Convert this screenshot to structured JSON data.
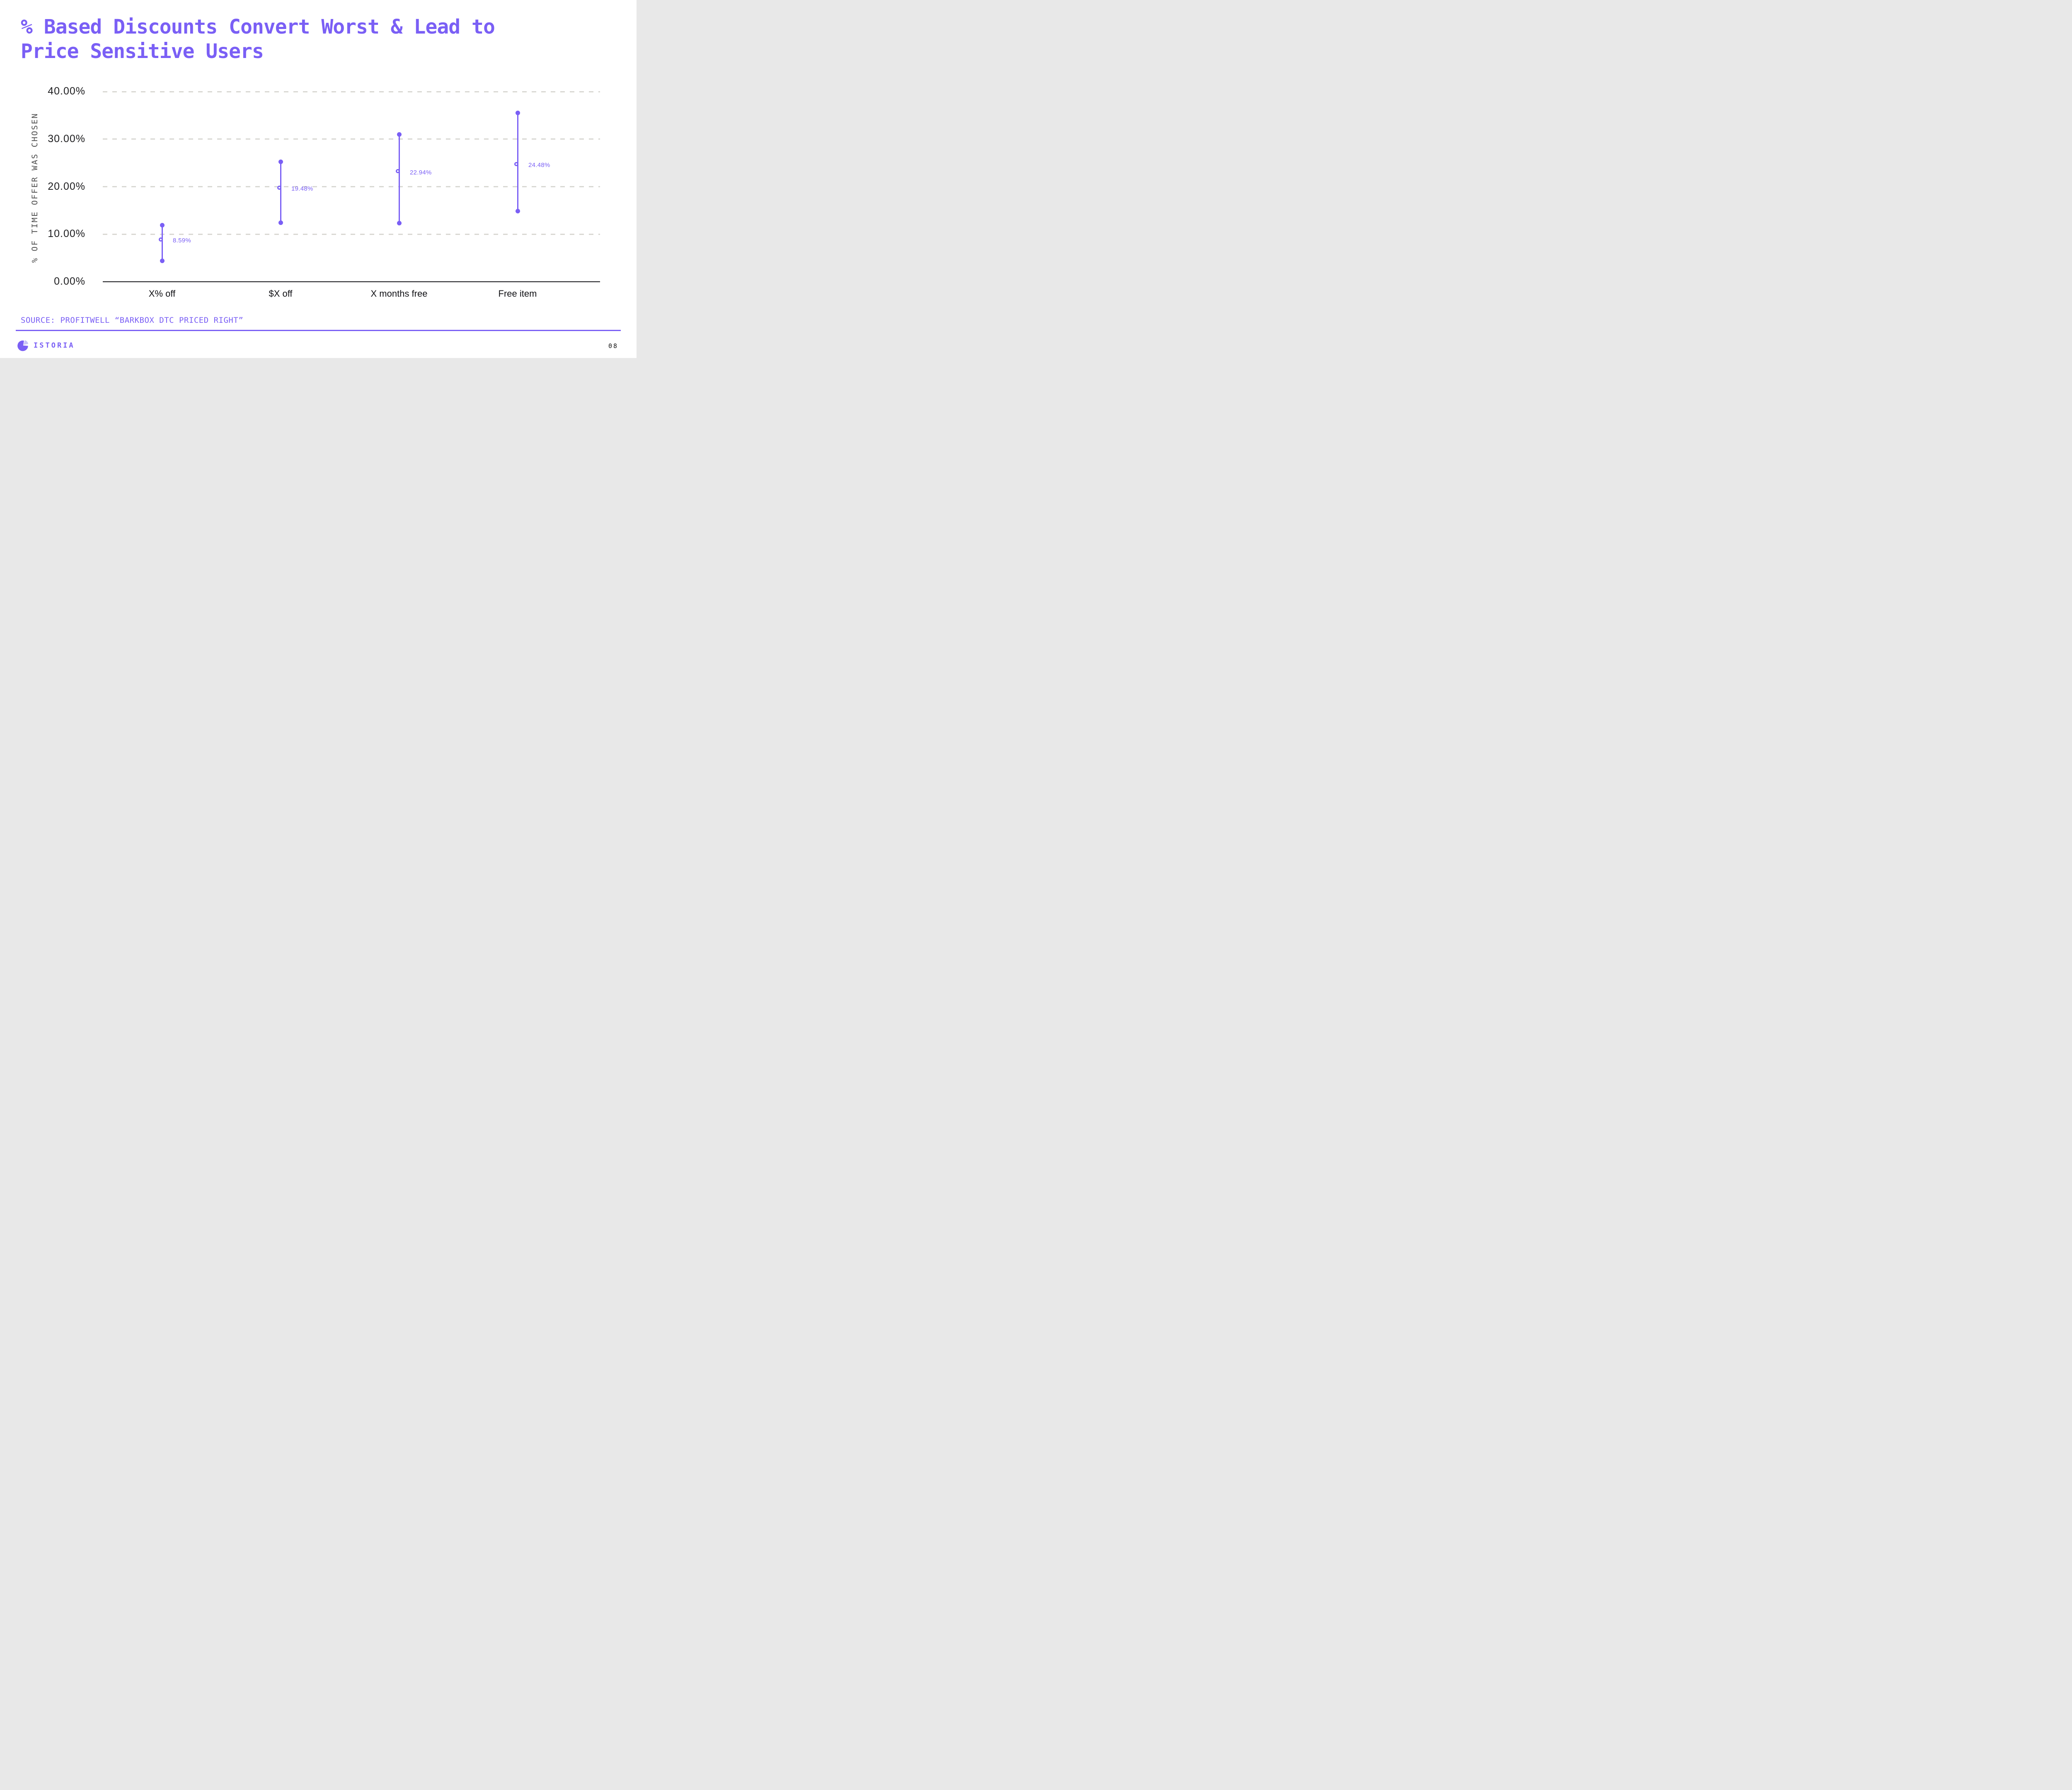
{
  "title": {
    "line1": "% Based Discounts Convert Worst & Lead to",
    "line2": "Price Sensitive Users"
  },
  "colors": {
    "accent": "#7A5FF5",
    "accent_light": "#C9C3F6",
    "gridline": "#D9D8D3",
    "axis_line": "#141418",
    "tick_text": "#1D1D1F",
    "axis_title_text": "#4D4D4D",
    "category_text": "#101014",
    "page_number_text": "#111111"
  },
  "chart_data": {
    "type": "scatter",
    "subtype": "vertical-range-dot-plot",
    "title": "",
    "xlabel": "",
    "ylabel": "% OF TIME OFFER WAS CHOSEN",
    "ylim": [
      0,
      40
    ],
    "grid": "horizontal dashed gridlines at 10% steps",
    "legend_position": "none",
    "yticks": [
      {
        "label": "40.00%",
        "value": 40
      },
      {
        "label": "30.00%",
        "value": 30
      },
      {
        "label": "20.00%",
        "value": 20
      },
      {
        "label": "10.00%",
        "value": 10
      },
      {
        "label": "0.00%",
        "value": 0
      }
    ],
    "categories": [
      "X% off",
      "$X off",
      "X months free",
      "Free item"
    ],
    "series": [
      {
        "category": "X% off",
        "low": 4.4,
        "mean": 8.59,
        "high": 11.9,
        "label": "8.59%"
      },
      {
        "category": "$X off",
        "low": 12.4,
        "mean": 19.48,
        "high": 25.2,
        "label": "19.48%"
      },
      {
        "category": "X months free",
        "low": 12.3,
        "mean": 22.94,
        "high": 31.0,
        "label": "22.94%"
      },
      {
        "category": "Free item",
        "low": 14.9,
        "mean": 24.48,
        "high": 35.5,
        "label": "24.48%"
      }
    ]
  },
  "footer": {
    "source": "SOURCE: PROFITWELL “BARKBOX DTC PRICED RIGHT”",
    "logo_text": "ISTORIA",
    "page_number": "08"
  }
}
